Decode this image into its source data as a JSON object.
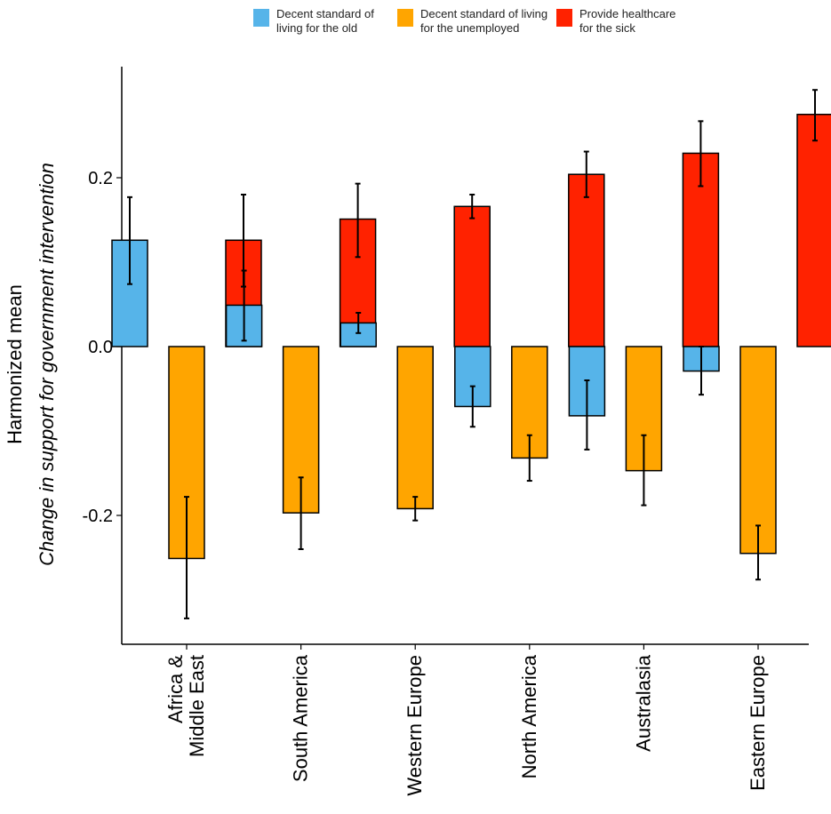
{
  "chart_data": {
    "type": "bar",
    "categories": [
      "Africa &\nMiddle East",
      "South America",
      "Western Europe",
      "North America",
      "Australasia",
      "Eastern Europe"
    ],
    "series": [
      {
        "name": "Decent standard of\nliving for the old",
        "color": "#56B4E9",
        "values": [
          0.126,
          0.049,
          0.028,
          -0.071,
          -0.082,
          -0.029
        ],
        "err_low": [
          0.074,
          0.007,
          0.016,
          -0.095,
          -0.122,
          -0.057
        ],
        "err_high": [
          0.177,
          0.09,
          0.04,
          -0.047,
          -0.04,
          0.0
        ]
      },
      {
        "name": "Decent standard of living\nfor the unemployed",
        "color": "#FFA500",
        "values": [
          -0.251,
          -0.197,
          -0.192,
          -0.132,
          -0.147,
          -0.245
        ],
        "err_low": [
          -0.322,
          -0.24,
          -0.206,
          -0.159,
          -0.188,
          -0.276
        ],
        "err_high": [
          -0.178,
          -0.155,
          -0.178,
          -0.105,
          -0.105,
          -0.212
        ]
      },
      {
        "name": "Provide healthcare\nfor the sick",
        "color": "#FF2200",
        "values": [
          0.126,
          0.151,
          0.166,
          0.204,
          0.229,
          0.275
        ],
        "err_low": [
          0.071,
          0.106,
          0.152,
          0.177,
          0.19,
          0.244
        ],
        "err_high": [
          0.18,
          0.193,
          0.18,
          0.231,
          0.267,
          0.304
        ]
      }
    ],
    "title": "",
    "ylabel": "Harmonized mean",
    "ylabel2": "Change in support for government intervention",
    "xlabel": "",
    "ylim": [
      -0.35,
      0.33
    ],
    "yticks": [
      -0.2,
      0.0,
      0.2
    ],
    "ytick_labels": [
      "-0.2",
      "0.0",
      "0.2"
    ],
    "legend_position": "top"
  }
}
